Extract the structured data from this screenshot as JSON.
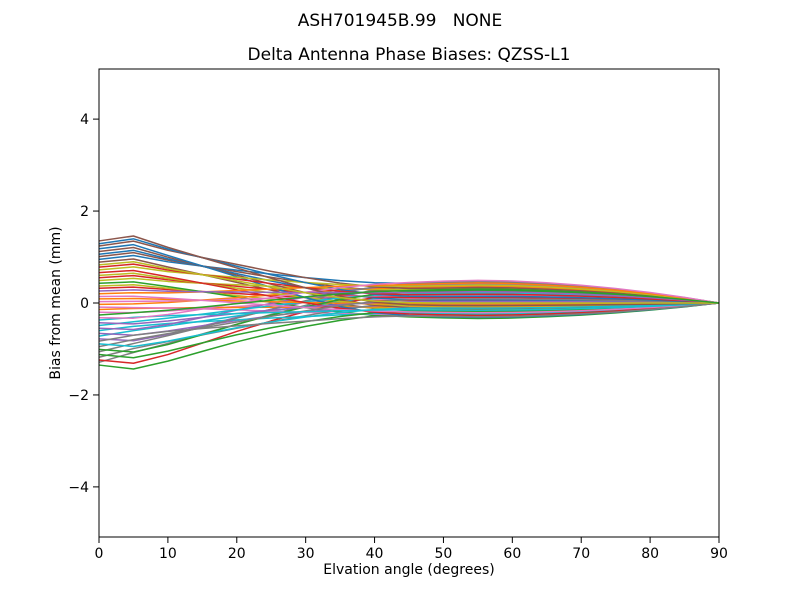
{
  "chart_data": {
    "type": "line",
    "suptitle": "ASH701945B.99   NONE",
    "title": "Delta Antenna Phase Biases: QZSS-L1",
    "xlabel": "Elvation angle (degrees)",
    "ylabel": "Bias from mean (mm)",
    "xlim": [
      0,
      90
    ],
    "ylim": [
      -5.09,
      5.09
    ],
    "xticks": [
      0,
      10,
      20,
      30,
      40,
      50,
      60,
      70,
      80,
      90
    ],
    "xtick_labels": [
      "0",
      "10",
      "20",
      "30",
      "40",
      "50",
      "60",
      "70",
      "80",
      "90"
    ],
    "yticks": [
      -4,
      -2,
      0,
      2,
      4
    ],
    "ytick_labels": [
      "−4",
      "−2",
      "0",
      "2",
      "4"
    ],
    "grid": false,
    "legend": false,
    "background": "#ffffff",
    "axis_color": "#000000",
    "line_width": 1.5,
    "color_cycle": [
      "#1f77b4",
      "#ff7f0e",
      "#2ca02c",
      "#d62728",
      "#9467bd",
      "#8c564b",
      "#e377c2",
      "#7f7f7f",
      "#bcbd22",
      "#17becf"
    ],
    "x": [
      0,
      5,
      10,
      15,
      20,
      25,
      30,
      35,
      40,
      45,
      50,
      55,
      60,
      65,
      70,
      75,
      80,
      85,
      90
    ],
    "profile_weights": {
      "mid": [
        0,
        0.02,
        0.1,
        0.24,
        0.4,
        0.56,
        0.72,
        0.86,
        0.96,
        1.02,
        1.08,
        1.12,
        1.09,
        1.0,
        0.88,
        0.72,
        0.52,
        0.28,
        0
      ],
      "start": {
        "peak": [
          1,
          1.08,
          0.9,
          0.74,
          0.58,
          0.42,
          0.27,
          0.14,
          0.05,
          0.01,
          0,
          0,
          0,
          0,
          0,
          0,
          0,
          0,
          0
        ],
        "dip": [
          1,
          1.06,
          0.92,
          0.74,
          0.56,
          0.4,
          0.26,
          0.14,
          0.05,
          0.01,
          0,
          0,
          0,
          0,
          0,
          0,
          0,
          0,
          0
        ],
        "rise": [
          1,
          0.84,
          0.71,
          0.59,
          0.47,
          0.35,
          0.24,
          0.13,
          0.05,
          0.01,
          0,
          0,
          0,
          0,
          0,
          0,
          0,
          0,
          0
        ]
      }
    },
    "series": [
      {
        "start_mm": -1.35,
        "mid_mm": -0.22,
        "profile": "dip",
        "color": "#2ca02c"
      },
      {
        "start_mm": 0.32,
        "mid_mm": 0.05,
        "profile": "peak",
        "color": "#d62728"
      },
      {
        "start_mm": -0.78,
        "mid_mm": 0.31,
        "profile": "dip",
        "color": "#9467bd"
      },
      {
        "start_mm": 0.89,
        "mid_mm": -0.17,
        "profile": "peak",
        "color": "#8c564b"
      },
      {
        "start_mm": -0.2,
        "mid_mm": 0.09,
        "profile": "dip",
        "color": "#e377c2"
      },
      {
        "start_mm": -1.29,
        "mid_mm": 0.36,
        "profile": "rise",
        "color": "#7f7f7f"
      },
      {
        "start_mm": 0.37,
        "mid_mm": -0.13,
        "profile": "peak",
        "color": "#bcbd22"
      },
      {
        "start_mm": -0.72,
        "mid_mm": 0.14,
        "profile": "rise",
        "color": "#17becf"
      },
      {
        "start_mm": 0.95,
        "mid_mm": 0.41,
        "profile": "peak",
        "color": "#1f77b4"
      },
      {
        "start_mm": -0.14,
        "mid_mm": -0.08,
        "profile": "rise",
        "color": "#ff7f0e"
      },
      {
        "start_mm": -1.24,
        "mid_mm": 0.19,
        "profile": "dip",
        "color": "#d62728"
      },
      {
        "start_mm": 0.43,
        "mid_mm": -0.3,
        "profile": "peak",
        "color": "#2ca02c"
      },
      {
        "start_mm": -0.66,
        "mid_mm": -0.03,
        "profile": "dip",
        "color": "#9467bd"
      },
      {
        "start_mm": 1.01,
        "mid_mm": 0.24,
        "profile": "peak",
        "color": "#8c564b"
      },
      {
        "start_mm": -0.09,
        "mid_mm": -0.25,
        "profile": "dip",
        "color": "#e377c2"
      },
      {
        "start_mm": -1.18,
        "mid_mm": 0.01,
        "profile": "rise",
        "color": "#7f7f7f"
      },
      {
        "start_mm": 0.49,
        "mid_mm": 0.28,
        "profile": "peak",
        "color": "#bcbd22"
      },
      {
        "start_mm": -0.6,
        "mid_mm": -0.21,
        "profile": "rise",
        "color": "#17becf"
      },
      {
        "start_mm": 1.06,
        "mid_mm": 0.06,
        "profile": "peak",
        "color": "#1f77b4"
      },
      {
        "start_mm": -0.03,
        "mid_mm": 0.33,
        "profile": "rise",
        "color": "#ff7f0e"
      },
      {
        "start_mm": -1.12,
        "mid_mm": -0.16,
        "profile": "dip",
        "color": "#2ca02c"
      },
      {
        "start_mm": 0.55,
        "mid_mm": 0.11,
        "profile": "peak",
        "color": "#d62728"
      },
      {
        "start_mm": -0.55,
        "mid_mm": 0.38,
        "profile": "dip",
        "color": "#9467bd"
      },
      {
        "start_mm": 1.12,
        "mid_mm": -0.11,
        "profile": "peak",
        "color": "#8c564b"
      },
      {
        "start_mm": 0.03,
        "mid_mm": 0.16,
        "profile": "peak",
        "color": "#e377c2"
      },
      {
        "start_mm": -1.06,
        "mid_mm": 0.42,
        "profile": "rise",
        "color": "#7f7f7f"
      },
      {
        "start_mm": 0.6,
        "mid_mm": -0.06,
        "profile": "peak",
        "color": "#bcbd22"
      },
      {
        "start_mm": -0.49,
        "mid_mm": 0.2,
        "profile": "rise",
        "color": "#17becf"
      },
      {
        "start_mm": 1.18,
        "mid_mm": -0.28,
        "profile": "peak",
        "color": "#1f77b4"
      },
      {
        "start_mm": 0.09,
        "mid_mm": -0.02,
        "profile": "peak",
        "color": "#ff7f0e"
      },
      {
        "start_mm": -1.01,
        "mid_mm": 0.25,
        "profile": "dip",
        "color": "#2ca02c"
      },
      {
        "start_mm": 0.66,
        "mid_mm": -0.24,
        "profile": "peak",
        "color": "#d62728"
      },
      {
        "start_mm": -0.43,
        "mid_mm": 0.03,
        "profile": "dip",
        "color": "#9467bd"
      },
      {
        "start_mm": 1.24,
        "mid_mm": 0.3,
        "profile": "peak",
        "color": "#8c564b"
      },
      {
        "start_mm": 0.14,
        "mid_mm": -0.19,
        "profile": "peak",
        "color": "#e377c2"
      },
      {
        "start_mm": -0.95,
        "mid_mm": 0.08,
        "profile": "rise",
        "color": "#7f7f7f"
      },
      {
        "start_mm": 0.72,
        "mid_mm": 0.35,
        "profile": "peak",
        "color": "#bcbd22"
      },
      {
        "start_mm": -0.37,
        "mid_mm": -0.14,
        "profile": "rise",
        "color": "#17becf"
      },
      {
        "start_mm": 1.29,
        "mid_mm": 0.13,
        "profile": "peak",
        "color": "#1f77b4"
      },
      {
        "start_mm": 0.2,
        "mid_mm": 0.39,
        "profile": "peak",
        "color": "#ff7f0e"
      },
      {
        "start_mm": -0.89,
        "mid_mm": -0.1,
        "profile": "dip",
        "color": "#17becf"
      },
      {
        "start_mm": 0.78,
        "mid_mm": 0.17,
        "profile": "peak",
        "color": "#d62728"
      },
      {
        "start_mm": -0.32,
        "mid_mm": 0.44,
        "profile": "dip",
        "color": "#e377c2"
      },
      {
        "start_mm": 1.35,
        "mid_mm": -0.05,
        "profile": "peak",
        "color": "#8c564b"
      },
      {
        "start_mm": 0.26,
        "mid_mm": 0.22,
        "profile": "peak",
        "color": "#9467bd"
      },
      {
        "start_mm": -0.83,
        "mid_mm": -0.27,
        "profile": "rise",
        "color": "#7f7f7f"
      },
      {
        "start_mm": 0.83,
        "mid_mm": 0.0,
        "profile": "peak",
        "color": "#bcbd22"
      },
      {
        "start_mm": -0.26,
        "mid_mm": 0.27,
        "profile": "rise",
        "color": "#2ca02c"
      }
    ]
  }
}
